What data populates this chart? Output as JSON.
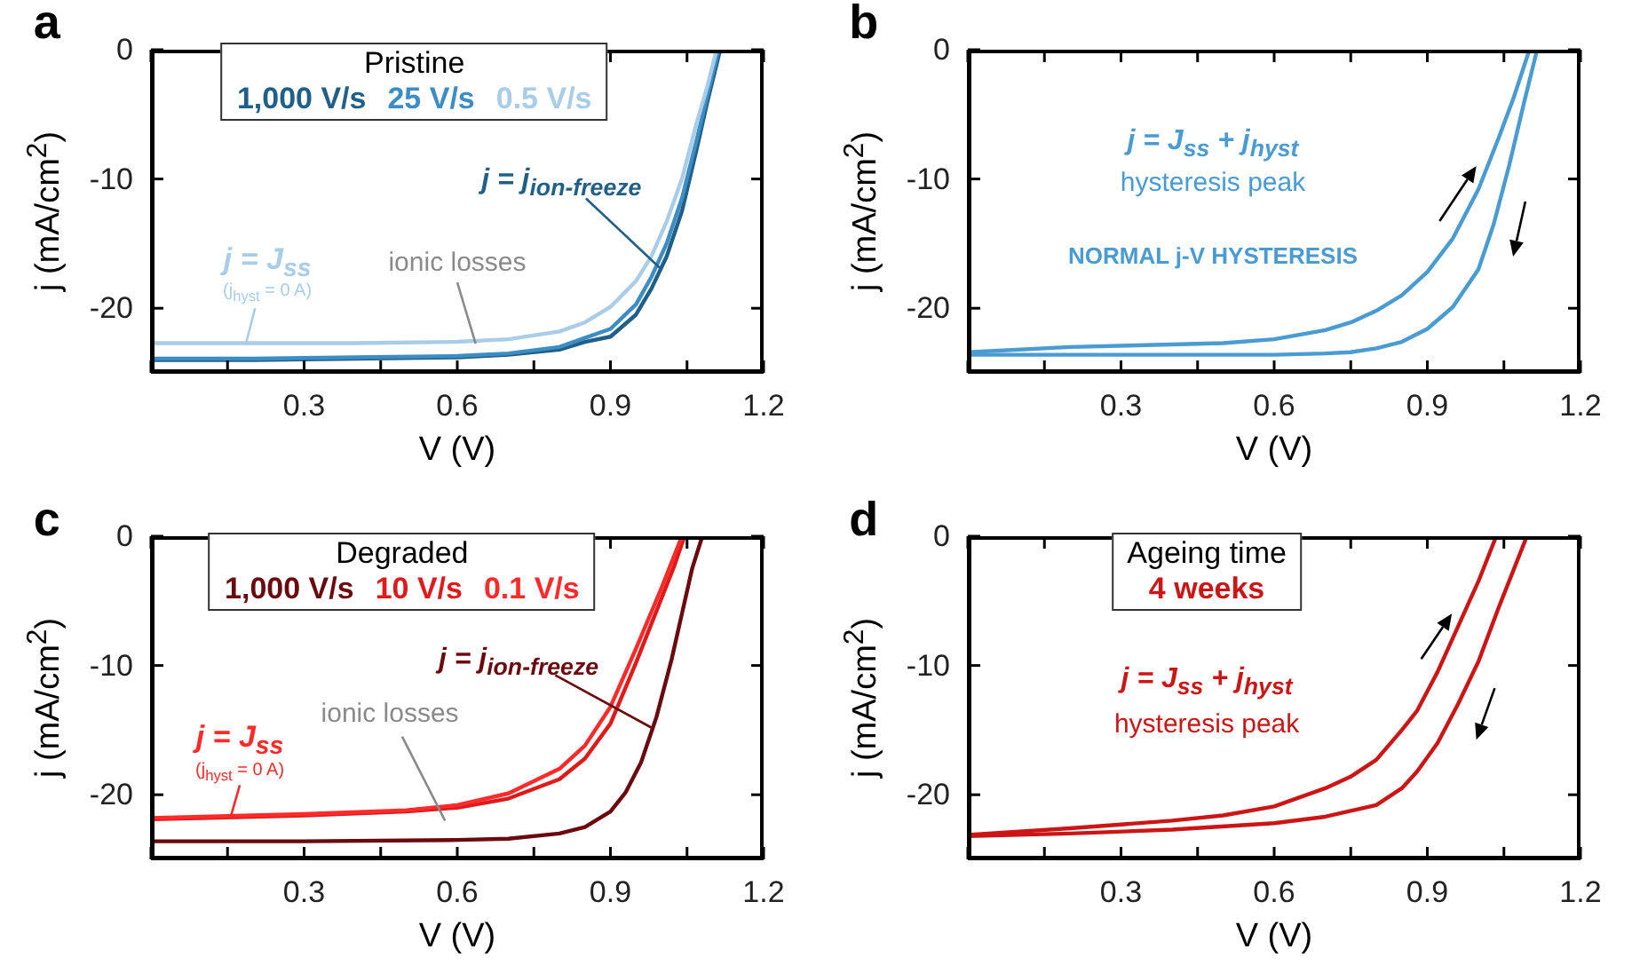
{
  "chart_data": [
    {
      "type": "line",
      "xlabel": "V (V)",
      "ylabel": "j (mA/cm$^{2}$)",
      "legend_title": "Pristine",
      "legend": "top",
      "xlim": [
        0,
        1.2
      ],
      "ylim": [
        -25,
        0
      ],
      "xticks": [
        {
          "value": 0,
          "label": null
        },
        {
          "value": 0.15,
          "label": null
        },
        0.3,
        {
          "value": 0.45,
          "label": null
        },
        0.6,
        {
          "value": 0.75,
          "label": null
        },
        0.9,
        {
          "value": 1.05,
          "label": null
        },
        1.2
      ],
      "yticks": [
        0,
        -10,
        -20
      ],
      "annotations": [
        "a",
        "j = J$_{ss}$",
        "(j$_{hyst}$ = 0 A)",
        "ionic losses",
        {
          "text": "j = j$_{ion-freeze}$",
          "x": 1.0,
          "y": -17
        }
      ],
      "series": [
        {
          "name": "1,000 V/s",
          "color": "#1f5f88",
          "x": [
            0,
            0.2,
            0.4,
            0.6,
            0.7,
            0.8,
            0.85,
            0.9,
            0.95,
            0.98,
            1.01,
            1.04,
            1.07,
            1.09,
            1.115
          ],
          "values": [
            -24,
            -24,
            -23.9,
            -23.8,
            -23.6,
            -23.2,
            -22.6,
            -22.2,
            -20.5,
            -18.5,
            -16,
            -12.5,
            -7.5,
            -4,
            0
          ]
        },
        {
          "name": "25 V/s",
          "color": "#3b8dc4",
          "x": [
            0,
            0.2,
            0.4,
            0.6,
            0.7,
            0.8,
            0.85,
            0.9,
            0.95,
            0.98,
            1.01,
            1.04,
            1.07,
            1.09,
            1.112
          ],
          "values": [
            -23.9,
            -23.9,
            -23.8,
            -23.7,
            -23.5,
            -23,
            -22.3,
            -21.6,
            -19.7,
            -17.6,
            -15,
            -11.5,
            -6.8,
            -3.5,
            0
          ]
        },
        {
          "name": "0.5 V/s",
          "color": "#a9cde8",
          "x": [
            0,
            0.2,
            0.4,
            0.6,
            0.7,
            0.8,
            0.85,
            0.9,
            0.95,
            0.98,
            1.01,
            1.04,
            1.07,
            1.09,
            1.108
          ],
          "values": [
            -22.7,
            -22.7,
            -22.7,
            -22.6,
            -22.4,
            -21.8,
            -21.1,
            -19.9,
            -17.9,
            -16,
            -13.3,
            -10,
            -5.5,
            -2.8,
            0
          ]
        }
      ]
    },
    {
      "type": "line",
      "xlabel": "V (V)",
      "ylabel": "j (mA/cm$^{2}$)",
      "xlim": [
        0,
        1.2
      ],
      "ylim": [
        -25,
        0
      ],
      "xticks": [
        {
          "value": 0,
          "label": null
        },
        {
          "value": 0.15,
          "label": null
        },
        0.3,
        {
          "value": 0.45,
          "label": null
        },
        0.6,
        {
          "value": 0.75,
          "label": null
        },
        0.9,
        {
          "value": 1.05,
          "label": null
        },
        1.2
      ],
      "yticks": [
        0,
        -10,
        -20
      ],
      "annotations": [
        "b",
        "j = J$_{ss}$ + j$_{hyst}$",
        "hysteresis peak",
        "NORMAL j-V HYSTERESIS"
      ],
      "series": [
        {
          "color": "#4a9bd2",
          "x": [
            0,
            0.2,
            0.4,
            0.5,
            0.6,
            0.7,
            0.75,
            0.8,
            0.85,
            0.9,
            0.95,
            1.0,
            1.04,
            1.07,
            1.1
          ],
          "values": [
            -23.4,
            -23,
            -22.8,
            -22.7,
            -22.4,
            -21.7,
            -21.1,
            -20.2,
            -19,
            -17.2,
            -14.6,
            -10.8,
            -6.8,
            -3.6,
            0
          ]
        },
        {
          "color": "#4a9bd2",
          "x": [
            0,
            0.2,
            0.4,
            0.6,
            0.7,
            0.75,
            0.8,
            0.85,
            0.9,
            0.95,
            1.0,
            1.03,
            1.06,
            1.09,
            1.115
          ],
          "values": [
            -23.6,
            -23.6,
            -23.6,
            -23.6,
            -23.5,
            -23.4,
            -23.1,
            -22.6,
            -21.6,
            -19.9,
            -17,
            -13.5,
            -9,
            -4,
            0
          ]
        }
      ]
    },
    {
      "type": "line",
      "xlabel": "V (V)",
      "ylabel": "j (mA/cm$^{2}$)",
      "legend_title": "Degraded",
      "legend": "top",
      "xlim": [
        0,
        1.2
      ],
      "ylim": [
        -25,
        0
      ],
      "xticks": [
        {
          "value": 0,
          "label": null
        },
        {
          "value": 0.15,
          "label": null
        },
        0.3,
        {
          "value": 0.45,
          "label": null
        },
        0.6,
        {
          "value": 0.75,
          "label": null
        },
        0.9,
        {
          "value": 1.05,
          "label": null
        },
        1.2
      ],
      "yticks": [
        0,
        -10,
        -20
      ],
      "annotations": [
        "c",
        "j = J$_{ss}$",
        "(j$_{hyst}$ = 0 A)",
        "ionic losses",
        {
          "text": "j = j$_{ion-freeze}$",
          "x": 0.98,
          "y": -14.8
        }
      ],
      "series": [
        {
          "name": "1,000 V/s",
          "color": "#6b0a0e",
          "x": [
            0,
            0.3,
            0.6,
            0.7,
            0.8,
            0.85,
            0.9,
            0.93,
            0.96,
            0.99,
            1.02,
            1.04,
            1.06,
            1.08
          ],
          "values": [
            -23.6,
            -23.6,
            -23.5,
            -23.4,
            -23,
            -22.5,
            -21.3,
            -19.8,
            -17.5,
            -14,
            -9.5,
            -6,
            -2.5,
            0
          ]
        },
        {
          "name": "10 V/s",
          "color": "#e01a1a",
          "x": [
            0,
            0.3,
            0.5,
            0.6,
            0.7,
            0.8,
            0.85,
            0.9,
            0.95,
            1.0,
            1.025,
            1.045
          ],
          "values": [
            -21.9,
            -21.6,
            -21.3,
            -21,
            -20.3,
            -18.8,
            -17.2,
            -14.5,
            -9.8,
            -4.8,
            -2.3,
            0
          ]
        },
        {
          "name": "0.1 V/s",
          "color": "#ff2a2a",
          "x": [
            0,
            0.3,
            0.5,
            0.6,
            0.7,
            0.8,
            0.85,
            0.9,
            0.95,
            1.0,
            1.02,
            1.04
          ],
          "values": [
            -21.8,
            -21.5,
            -21.2,
            -20.8,
            -19.9,
            -18,
            -16.2,
            -13.2,
            -8.7,
            -4,
            -2,
            0
          ]
        }
      ]
    },
    {
      "type": "line",
      "xlabel": "V (V)",
      "ylabel": "j (mA/cm$^{2}$)",
      "legend_title": "Ageing time",
      "legend": "top",
      "xlim": [
        0,
        1.2
      ],
      "ylim": [
        -25,
        0
      ],
      "xticks": [
        {
          "value": 0,
          "label": null
        },
        {
          "value": 0.15,
          "label": null
        },
        0.3,
        {
          "value": 0.45,
          "label": null
        },
        0.6,
        {
          "value": 0.75,
          "label": null
        },
        0.9,
        {
          "value": 1.05,
          "label": null
        },
        1.2
      ],
      "yticks": [
        0,
        -10,
        -20
      ],
      "annotations": [
        "d",
        "j = J$_{ss}$ + j$_{hyst}$",
        "hysteresis peak"
      ],
      "series": [
        {
          "name": "4 weeks",
          "color": "#cc1616",
          "x": [
            0,
            0.2,
            0.3,
            0.4,
            0.5,
            0.6,
            0.7,
            0.75,
            0.8,
            0.85,
            0.88,
            0.92,
            0.96,
            1.0,
            1.035
          ],
          "values": [
            -23.1,
            -22.6,
            -22.3,
            -22,
            -21.6,
            -20.9,
            -19.5,
            -18.6,
            -17.3,
            -15,
            -13.5,
            -10.5,
            -7,
            -3.5,
            0
          ]
        },
        {
          "color": "#cc1616",
          "x": [
            0,
            0.2,
            0.4,
            0.6,
            0.7,
            0.8,
            0.85,
            0.88,
            0.92,
            0.96,
            1.0,
            1.04,
            1.07,
            1.095
          ],
          "values": [
            -23.2,
            -23,
            -22.7,
            -22.2,
            -21.7,
            -20.8,
            -19.5,
            -18.2,
            -16,
            -13,
            -9.7,
            -5.5,
            -2.5,
            0
          ]
        }
      ]
    }
  ]
}
